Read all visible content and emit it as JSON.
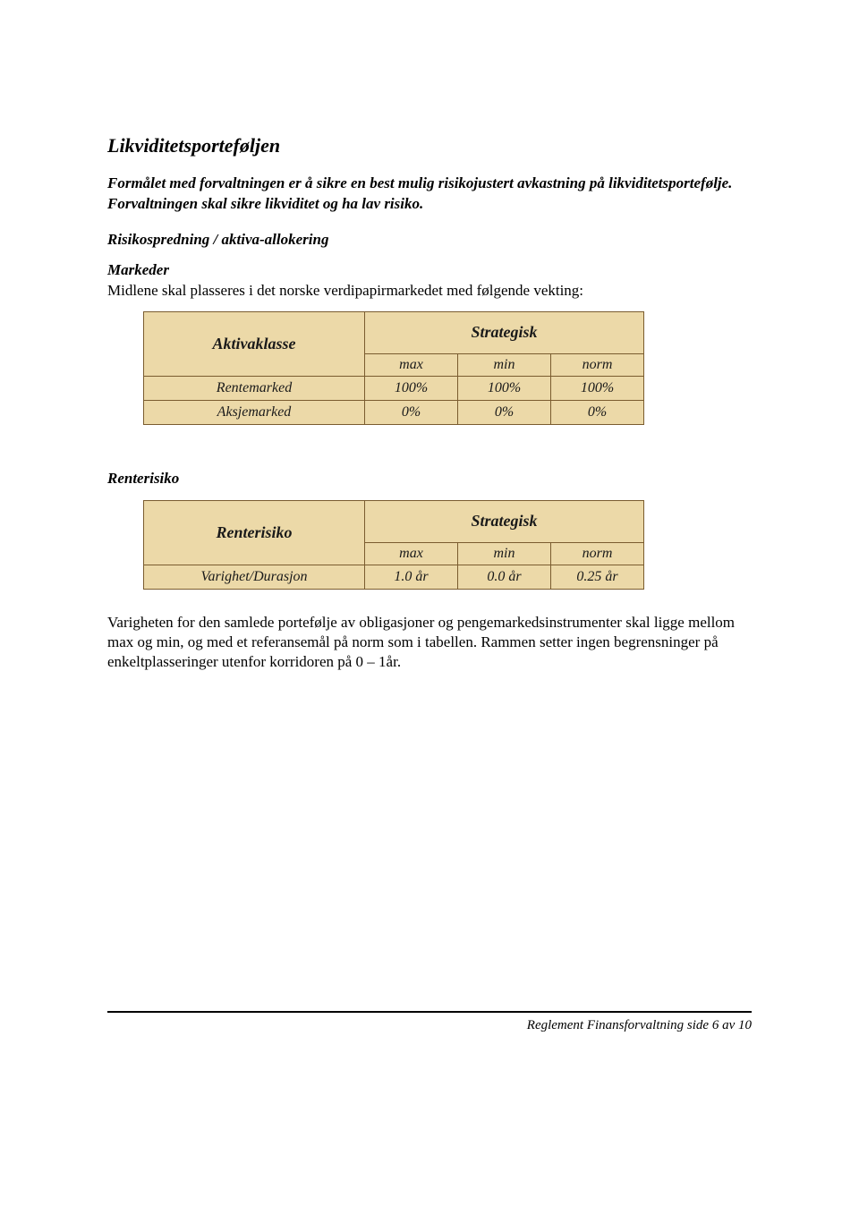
{
  "title": "Likviditetsporteføljen",
  "intro": "Formålet med forvaltningen er å sikre en best mulig risikojustert avkastning på likviditetsportefølje. Forvaltningen skal sikre likviditet og ha lav risiko.",
  "risikospredning_heading": "Risikospredning / aktiva-allokering",
  "markeder_heading": "Markeder",
  "markeder_text": "Midlene skal plasseres i det norske verdipapirmarkedet med følgende vekting:",
  "table1": {
    "header_left": "Aktivaklasse",
    "header_right": "Strategisk",
    "subheaders": {
      "max": "max",
      "min": "min",
      "norm": "norm"
    },
    "rows": [
      {
        "label": "Rentemarked",
        "max": "100%",
        "min": "100%",
        "norm": "100%"
      },
      {
        "label": "Aksjemarked",
        "max": "0%",
        "min": "0%",
        "norm": "0%"
      }
    ],
    "colors": {
      "cell_bg": "#ecd9a8",
      "border": "#7a5c2f"
    }
  },
  "renterisiko_heading": "Renterisiko",
  "table2": {
    "header_left": "Renterisiko",
    "header_right": "Strategisk",
    "subheaders": {
      "max": "max",
      "min": "min",
      "norm": "norm"
    },
    "rows": [
      {
        "label": "Varighet/Durasjon",
        "max": "1.0 år",
        "min": "0.0 år",
        "norm": "0.25 år"
      }
    ],
    "colors": {
      "cell_bg": "#ecd9a8",
      "border": "#7a5c2f"
    }
  },
  "closing_paragraph": "Varigheten for den samlede portefølje av obligasjoner og pengemarkedsinstrumenter skal ligge mellom max og min, og med et referansemål på norm som i tabellen. Rammen setter ingen begrensninger på enkeltplasseringer utenfor korridoren på 0 – 1år.",
  "footer": "Reglement Finansforvaltning side 6 av 10"
}
